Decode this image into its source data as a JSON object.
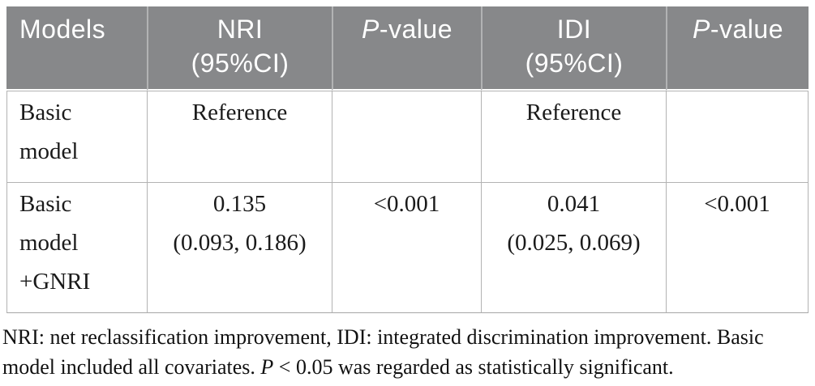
{
  "colors": {
    "header_background": "#87888a",
    "header_text": "#ffffff",
    "header_divider": "#b2b3b4",
    "body_border": "#b3b3b3",
    "body_text": "#1a1a1a"
  },
  "table": {
    "headers": [
      {
        "label": "Models"
      },
      {
        "line1": "NRI",
        "line2": "(95%CI)"
      },
      {
        "italic": "P",
        "rest": "-value"
      },
      {
        "line1": "IDI",
        "line2": "(95%CI)"
      },
      {
        "italic": "P",
        "rest": "-value"
      }
    ],
    "rows": [
      {
        "model": {
          "line1": "Basic",
          "line2": "model"
        },
        "nri": {
          "line1": "Reference",
          "line2": ""
        },
        "p_nri": "",
        "idi": {
          "line1": "Reference",
          "line2": ""
        },
        "p_idi": ""
      },
      {
        "model": {
          "line1": "Basic",
          "line2": "model",
          "line3": "+GNRI"
        },
        "nri": {
          "line1": "0.135",
          "line2": "(0.093, 0.186)"
        },
        "p_nri": "<0.001",
        "idi": {
          "line1": "0.041",
          "line2": "(0.025, 0.069)"
        },
        "p_idi": "<0.001"
      }
    ]
  },
  "footnote": {
    "line1": "NRI: net reclassification improvement, IDI: integrated discrimination improvement. Basic",
    "line2_before_p": "model included all covariates. ",
    "p_italic": "P",
    "line2_after_p": " < 0.05 was regarded as statistically significant."
  }
}
